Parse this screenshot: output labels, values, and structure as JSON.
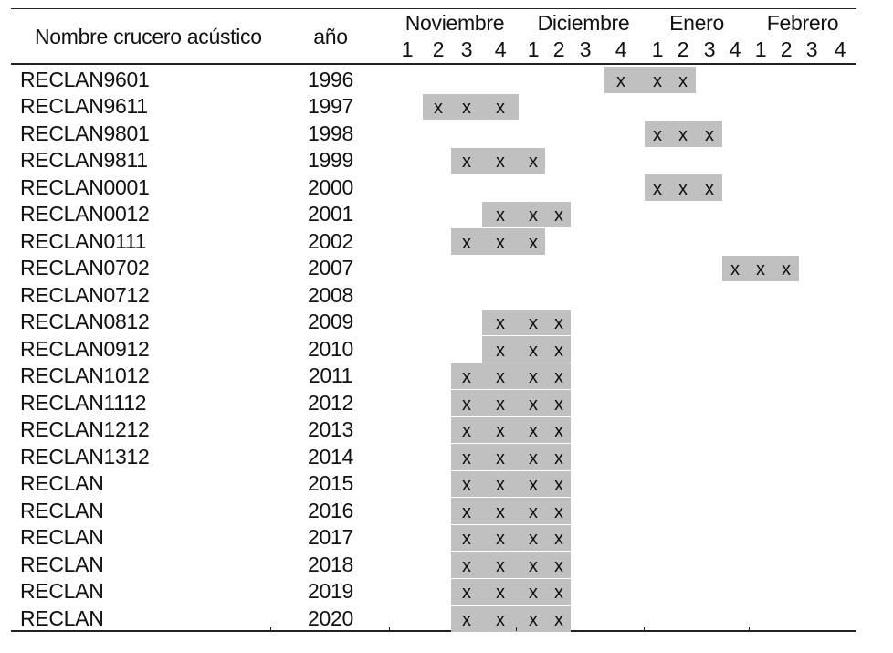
{
  "header": {
    "name_col": "Nombre crucero acústico",
    "year_col": "año",
    "months": [
      "Noviembre",
      "Diciembre",
      "Enero",
      "Febrero"
    ],
    "weeks": [
      "1",
      "2",
      "3",
      "4"
    ]
  },
  "mark_symbol": "x",
  "shade_color": "#c0c0c0",
  "rows": [
    {
      "name": "RECLAN9601",
      "year": "1996",
      "weeks": [
        8,
        9,
        10
      ]
    },
    {
      "name": "RECLAN9611",
      "year": "1997",
      "weeks": [
        2,
        3,
        4
      ]
    },
    {
      "name": "RECLAN9801",
      "year": "1998",
      "weeks": [
        9,
        10,
        11
      ]
    },
    {
      "name": "RECLAN9811",
      "year": "1999",
      "weeks": [
        3,
        4,
        5
      ]
    },
    {
      "name": "RECLAN0001",
      "year": "2000",
      "weeks": [
        9,
        10,
        11
      ]
    },
    {
      "name": "RECLAN0012",
      "year": "2001",
      "weeks": [
        4,
        5,
        6
      ]
    },
    {
      "name": "RECLAN0111",
      "year": "2002",
      "weeks": [
        3,
        4,
        5
      ]
    },
    {
      "name": "RECLAN0702",
      "year": "2007",
      "weeks": [
        12,
        13,
        14
      ]
    },
    {
      "name": "RECLAN0712",
      "year": "2008",
      "weeks": []
    },
    {
      "name": "RECLAN0812",
      "year": "2009",
      "weeks": [
        4,
        5,
        6
      ]
    },
    {
      "name": "RECLAN0912",
      "year": "2010",
      "weeks": [
        4,
        5,
        6
      ]
    },
    {
      "name": "RECLAN1012",
      "year": "2011",
      "weeks": [
        3,
        4,
        5,
        6
      ]
    },
    {
      "name": "RECLAN1112",
      "year": "2012",
      "weeks": [
        3,
        4,
        5,
        6
      ]
    },
    {
      "name": "RECLAN1212",
      "year": "2013",
      "weeks": [
        3,
        4,
        5,
        6
      ]
    },
    {
      "name": "RECLAN1312",
      "year": "2014",
      "weeks": [
        3,
        4,
        5,
        6
      ]
    },
    {
      "name": "RECLAN",
      "year": "2015",
      "weeks": [
        3,
        4,
        5,
        6
      ]
    },
    {
      "name": "RECLAN",
      "year": "2016",
      "weeks": [
        3,
        4,
        5,
        6
      ]
    },
    {
      "name": "RECLAN",
      "year": "2017",
      "weeks": [
        3,
        4,
        5,
        6
      ]
    },
    {
      "name": "RECLAN",
      "year": "2018",
      "weeks": [
        3,
        4,
        5,
        6
      ]
    },
    {
      "name": "RECLAN",
      "year": "2019",
      "weeks": [
        3,
        4,
        5,
        6
      ]
    },
    {
      "name": "RECLAN",
      "year": "2020",
      "weeks": [
        3,
        4,
        5,
        6
      ]
    }
  ]
}
